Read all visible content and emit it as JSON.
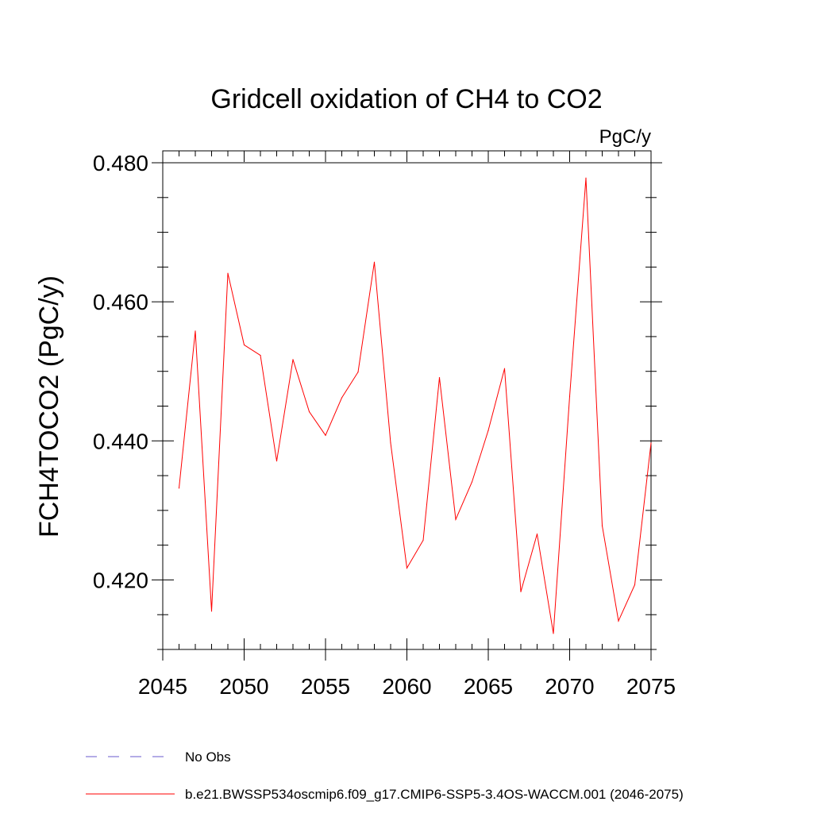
{
  "chart_data": {
    "type": "line",
    "title": "Gridcell oxidation of CH4 to CO2",
    "units": "PgC/y",
    "ylabel": "FCH4TOCO2  (PgC/y)",
    "xlabel": "",
    "xlim": [
      2045,
      2075
    ],
    "ylim": [
      0.41,
      0.48
    ],
    "xticks": [
      2045,
      2050,
      2055,
      2060,
      2065,
      2070,
      2075
    ],
    "xtick_labels": [
      "2045",
      "2050",
      "2055",
      "2060",
      "2065",
      "2070",
      "2075"
    ],
    "yticks": [
      0.42,
      0.44,
      0.46,
      0.48
    ],
    "ytick_labels": [
      "0.420",
      "0.440",
      "0.460",
      "0.480"
    ],
    "series": [
      {
        "name": "b.e21.BWSSP534oscmip6.f09_g17.CMIP6-SSP5-3.4OS-WACCM.001 (2046-2075)",
        "color": "#ff0000",
        "style": "solid",
        "x": [
          2046,
          2047,
          2048,
          2049,
          2050,
          2051,
          2052,
          2053,
          2054,
          2055,
          2056,
          2057,
          2058,
          2059,
          2060,
          2061,
          2062,
          2063,
          2064,
          2065,
          2066,
          2067,
          2068,
          2069,
          2070,
          2071,
          2072,
          2073,
          2074,
          2075
        ],
        "values": [
          0.4332,
          0.4558,
          0.4155,
          0.4641,
          0.4538,
          0.4523,
          0.4371,
          0.4517,
          0.4442,
          0.4408,
          0.4462,
          0.4499,
          0.4657,
          0.4397,
          0.4217,
          0.4257,
          0.4491,
          0.4287,
          0.4341,
          0.4415,
          0.4504,
          0.4183,
          0.4266,
          0.4123,
          0.4464,
          0.4778,
          0.4278,
          0.4141,
          0.4193,
          0.4397
        ]
      }
    ],
    "legend": [
      {
        "label": "No Obs",
        "color": "#6a5acd",
        "style": "dashed"
      },
      {
        "label": "b.e21.BWSSP534oscmip6.f09_g17.CMIP6-SSP5-3.4OS-WACCM.001 (2046-2075)",
        "color": "#ff0000",
        "style": "solid"
      }
    ],
    "legend_position": "bottom-left"
  }
}
